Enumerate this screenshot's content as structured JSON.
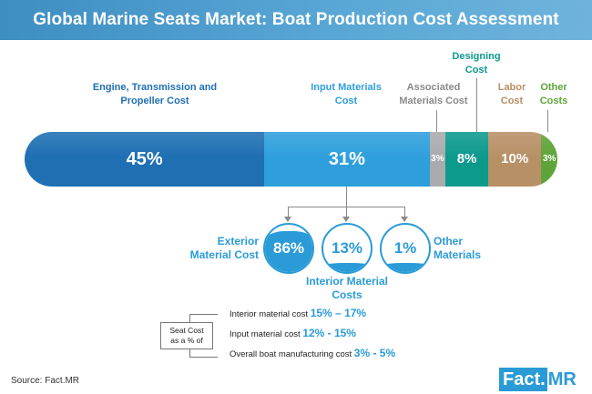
{
  "title": "Global Marine Seats Market: Boat Production Cost Assessment",
  "chart_data": {
    "type": "bar",
    "orientation": "stacked-horizontal-100",
    "categories": [
      "Engine, Transmission and Propeller Cost",
      "Input Materials Cost",
      "Associated Materials Cost",
      "Designing Cost",
      "Labor Cost",
      "Other Costs"
    ],
    "values": [
      45,
      31,
      3,
      8,
      10,
      3
    ],
    "value_labels": [
      "45%",
      "31%",
      "3%",
      "8%",
      "10%",
      "3%"
    ],
    "colors": [
      "#1f6fb3",
      "#2f9fdc",
      "#a9abad",
      "#0c9a8d",
      "#b89066",
      "#5fa43a"
    ],
    "label_colors": [
      "#1f6fb3",
      "#2f9fdc",
      "#8a8a8a",
      "#0c9a8d",
      "#b89066",
      "#5fa43a"
    ],
    "breakdown": {
      "of": "Input Materials Cost",
      "items": [
        {
          "label": "Exterior Material Cost",
          "value": 86,
          "value_label": "86%"
        },
        {
          "label": "Interior Material Costs",
          "value": 13,
          "value_label": "13%"
        },
        {
          "label": "Other Materials",
          "value": 1,
          "value_label": "1%"
        }
      ]
    }
  },
  "seat_cost": {
    "box_label_line1": "Seat Cost",
    "box_label_line2": "as a % of",
    "rows": [
      {
        "label": "Interior material cost",
        "value": "15% – 17%"
      },
      {
        "label": "Input material cost",
        "value": "12% - 15%"
      },
      {
        "label": "Overall boat manufacturing cost",
        "value": "3% - 5%"
      }
    ]
  },
  "source": "Source: Fact.MR",
  "logo": {
    "part1": "Fact.",
    "part2": "MR"
  }
}
